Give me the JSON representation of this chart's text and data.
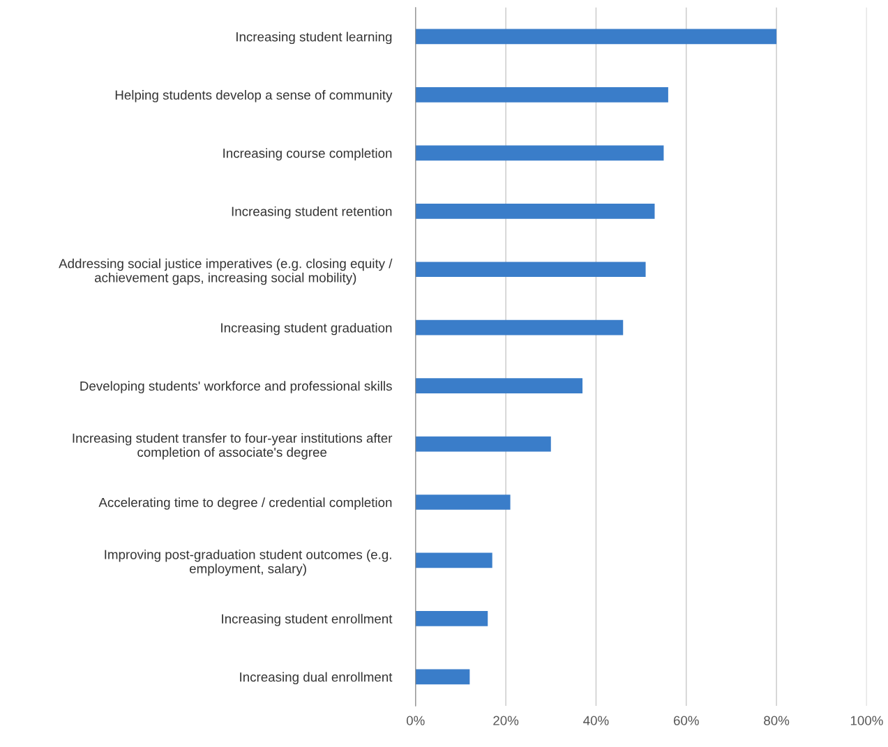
{
  "chart_data": {
    "type": "bar",
    "orientation": "horizontal",
    "categories": [
      "Increasing student learning",
      "Helping students develop a sense of community",
      "Increasing course completion",
      "Increasing student retention",
      "Addressing social justice imperatives (e.g. closing equity /\nachievement gaps, increasing social mobility)",
      "Increasing student graduation",
      "Developing students' workforce and professional skills",
      "Increasing student transfer to four-year institutions after\ncompletion of associate's degree",
      "Accelerating time to degree / credential completion",
      "Improving post-graduation student outcomes (e.g.\nemployment, salary)",
      "Increasing student enrollment",
      "Increasing dual enrollment"
    ],
    "values": [
      80,
      56,
      55,
      53,
      51,
      46,
      37,
      30,
      21,
      17,
      16,
      12
    ],
    "color": "#3a7dc9",
    "xlim": [
      0,
      100
    ],
    "xticks": [
      {
        "value": 0,
        "label": "0%"
      },
      {
        "value": 20,
        "label": "20%"
      },
      {
        "value": 40,
        "label": "40%"
      },
      {
        "value": 60,
        "label": "60%"
      },
      {
        "value": 80,
        "label": "80%"
      },
      {
        "value": 100,
        "label": "100%"
      }
    ],
    "grid": "x",
    "legend": false
  }
}
